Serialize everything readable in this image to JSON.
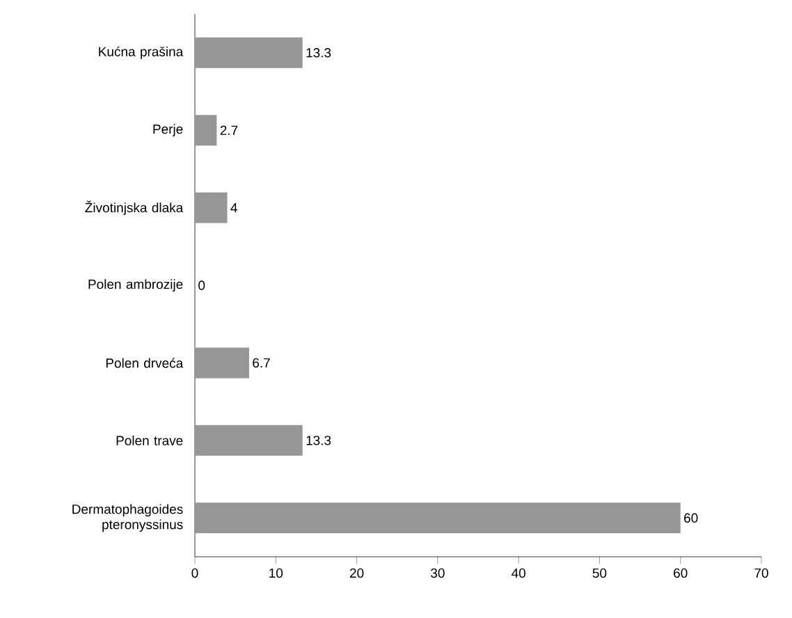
{
  "chart_data": {
    "type": "bar",
    "orientation": "horizontal",
    "categories": [
      "Kućna prašina",
      "Perje",
      "Životinjska dlaka",
      "Polen ambrozije",
      "Polen drveća",
      "Polen trave",
      "Dermatophagoides pteronyssinus"
    ],
    "values": [
      13.3,
      2.7,
      4,
      0,
      6.7,
      13.3,
      60
    ],
    "color": "#969696",
    "xlim": [
      0,
      70
    ],
    "xticks": [
      0,
      10,
      20,
      30,
      40,
      50,
      60,
      70
    ],
    "data_labels": true,
    "grid": false
  }
}
